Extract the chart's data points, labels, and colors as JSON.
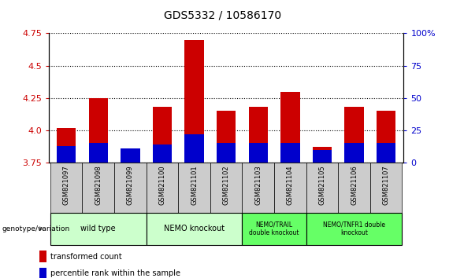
{
  "title": "GDS5332 / 10586170",
  "samples": [
    "GSM821097",
    "GSM821098",
    "GSM821099",
    "GSM821100",
    "GSM821101",
    "GSM821102",
    "GSM821103",
    "GSM821104",
    "GSM821105",
    "GSM821106",
    "GSM821107"
  ],
  "red_values": [
    4.02,
    4.25,
    3.85,
    4.18,
    4.7,
    4.15,
    4.18,
    4.3,
    3.87,
    4.18,
    4.15
  ],
  "blue_values": [
    3.88,
    3.9,
    3.86,
    3.89,
    3.97,
    3.9,
    3.9,
    3.9,
    3.85,
    3.9,
    3.9
  ],
  "ymin": 3.75,
  "ymax": 4.75,
  "yticks": [
    3.75,
    4.0,
    4.25,
    4.5,
    4.75
  ],
  "right_yticks": [
    0,
    25,
    50,
    75,
    100
  ],
  "right_ytick_labels": [
    "0",
    "25",
    "50",
    "75",
    "100%"
  ],
  "bar_width": 0.6,
  "red_color": "#CC0000",
  "blue_color": "#0000CC",
  "group_info": [
    {
      "indices": [
        0,
        1,
        2
      ],
      "label": "wild type",
      "color": "#ccffcc"
    },
    {
      "indices": [
        3,
        4,
        5
      ],
      "label": "NEMO knockout",
      "color": "#ccffcc"
    },
    {
      "indices": [
        6,
        7
      ],
      "label": "NEMO/TRAIL\ndouble knockout",
      "color": "#66ff66"
    },
    {
      "indices": [
        8,
        9,
        10
      ],
      "label": "NEMO/TNFR1 double\nknockout",
      "color": "#66ff66"
    }
  ],
  "legend_red_label": "transformed count",
  "legend_blue_label": "percentile rank within the sample",
  "genotype_label": "genotype/variation",
  "tick_color_left": "#CC0000",
  "tick_color_right": "#0000CC",
  "sample_bg_color": "#cccccc",
  "sample_border_color": "#000000"
}
